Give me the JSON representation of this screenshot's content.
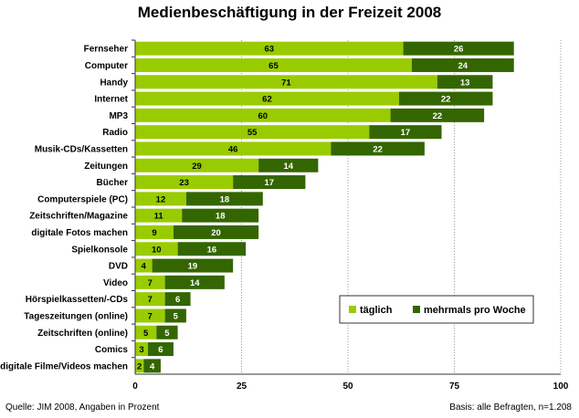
{
  "chart_data": {
    "type": "bar",
    "orientation": "horizontal",
    "stacked": true,
    "title": "Medienbeschäftigung in der Freizeit 2008",
    "categories": [
      "Fernseher",
      "Computer",
      "Handy",
      "Internet",
      "MP3",
      "Radio",
      "Musik-CDs/Kassetten",
      "Zeitungen",
      "Bücher",
      "Computerspiele (PC)",
      "Zeitschriften/Magazine",
      "digitale Fotos machen",
      "Spielkonsole",
      "DVD",
      "Video",
      "Hörspielkassetten/-CDs",
      "Tageszeitungen (online)",
      "Zeitschriften (online)",
      "Comics",
      "digitale Filme/Videos machen"
    ],
    "series": [
      {
        "name": "täglich",
        "color": "#99cc00",
        "values": [
          63,
          65,
          71,
          62,
          60,
          55,
          46,
          29,
          23,
          12,
          11,
          9,
          10,
          4,
          7,
          7,
          7,
          5,
          3,
          2
        ]
      },
      {
        "name": "mehrmals pro Woche",
        "color": "#336600",
        "values": [
          26,
          24,
          13,
          22,
          22,
          17,
          22,
          14,
          17,
          18,
          18,
          20,
          16,
          19,
          14,
          6,
          5,
          5,
          6,
          4
        ]
      }
    ],
    "xlim": [
      0,
      100
    ],
    "xticks": [
      "0",
      "25",
      "50",
      "75",
      "100"
    ],
    "grid": true,
    "legend_position": "bottom-right"
  },
  "footer": {
    "source": "Quelle: JIM 2008, Angaben in Prozent",
    "basis": "Basis: alle Befragten, n=1.208"
  }
}
